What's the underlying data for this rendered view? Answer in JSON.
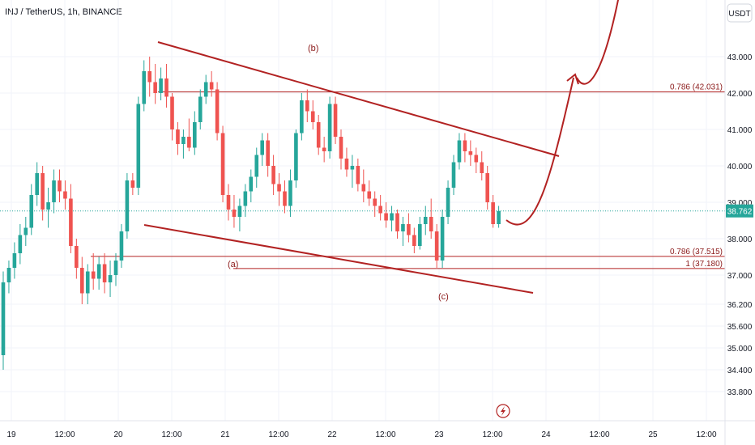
{
  "header": {
    "title": "INJ / TetherUS, 1h, BINANCE",
    "currency_badge": "USDT"
  },
  "price_badge": "38.762",
  "colors": {
    "up": "#26a69a",
    "down": "#ef5350",
    "line": "#b22222",
    "grid": "#f0f3fa",
    "badge": "#26a69a"
  },
  "chart_data": {
    "type": "candlestick",
    "title": "INJ / TetherUS, 1h, BINANCE",
    "y_ticks": [
      33.8,
      34.4,
      35.0,
      35.6,
      36.2,
      37.0,
      38.0,
      39.0,
      40.0,
      41.0,
      42.0,
      43.0
    ],
    "y_tick_labels": [
      "33.800",
      "34.400",
      "35.000",
      "35.600",
      "36.200",
      "37.000",
      "38.000",
      "39.000",
      "40.000",
      "41.000",
      "42.000",
      "43.000"
    ],
    "x_labels": [
      "19",
      "12:00",
      "20",
      "12:00",
      "21",
      "12:00",
      "22",
      "12:00",
      "23",
      "12:00",
      "24",
      "12:00",
      "25",
      "12:00"
    ],
    "last_price": 38.762,
    "fib_levels": [
      {
        "label": "0.786 (42.031)",
        "value": 42.031
      },
      {
        "label": "0.786 (37.515)",
        "value": 37.515
      },
      {
        "label": "1 (37.180)",
        "value": 37.18
      }
    ],
    "wave_labels": [
      "(a)",
      "(b)",
      "(c)"
    ],
    "candles": [
      [
        34.8,
        37.1,
        34.4,
        36.8
      ],
      [
        36.8,
        37.4,
        36.5,
        37.2
      ],
      [
        37.2,
        37.9,
        36.9,
        37.6
      ],
      [
        37.6,
        38.4,
        37.3,
        38.1
      ],
      [
        38.1,
        38.6,
        37.8,
        38.3
      ],
      [
        38.3,
        39.5,
        38.1,
        39.2
      ],
      [
        39.2,
        40.1,
        38.9,
        39.8
      ],
      [
        39.8,
        40.0,
        38.5,
        38.8
      ],
      [
        38.8,
        39.4,
        38.3,
        39.0
      ],
      [
        39.0,
        39.9,
        38.7,
        39.6
      ],
      [
        39.6,
        39.9,
        39.0,
        39.3
      ],
      [
        39.3,
        39.6,
        38.8,
        39.1
      ],
      [
        39.1,
        39.5,
        37.6,
        37.8
      ],
      [
        37.8,
        38.0,
        36.9,
        37.2
      ],
      [
        37.2,
        37.5,
        36.2,
        36.5
      ],
      [
        36.5,
        37.3,
        36.2,
        37.1
      ],
      [
        37.1,
        37.6,
        36.6,
        36.9
      ],
      [
        36.9,
        37.5,
        36.6,
        37.3
      ],
      [
        37.3,
        37.6,
        36.5,
        36.8
      ],
      [
        36.8,
        37.4,
        36.4,
        37.0
      ],
      [
        37.0,
        37.6,
        36.7,
        37.4
      ],
      [
        37.4,
        38.4,
        37.2,
        38.2
      ],
      [
        38.2,
        39.8,
        38.0,
        39.6
      ],
      [
        39.6,
        39.8,
        39.2,
        39.4
      ],
      [
        39.4,
        41.9,
        39.2,
        41.7
      ],
      [
        41.7,
        42.9,
        41.5,
        42.6
      ],
      [
        42.6,
        43.0,
        41.9,
        42.3
      ],
      [
        42.3,
        42.8,
        41.7,
        42.0
      ],
      [
        42.0,
        42.7,
        41.8,
        42.4
      ],
      [
        42.4,
        42.8,
        41.6,
        41.9
      ],
      [
        41.9,
        42.0,
        40.7,
        41.0
      ],
      [
        41.0,
        41.2,
        40.3,
        40.6
      ],
      [
        40.6,
        41.0,
        40.2,
        40.8
      ],
      [
        40.8,
        41.3,
        40.4,
        40.5
      ],
      [
        40.5,
        41.5,
        40.3,
        41.2
      ],
      [
        41.2,
        42.1,
        41.0,
        41.9
      ],
      [
        41.9,
        42.5,
        41.7,
        42.3
      ],
      [
        42.3,
        42.6,
        41.9,
        42.1
      ],
      [
        42.1,
        42.3,
        40.7,
        40.9
      ],
      [
        40.9,
        41.1,
        39.0,
        39.2
      ],
      [
        39.2,
        39.5,
        38.5,
        38.8
      ],
      [
        38.8,
        39.2,
        38.3,
        38.6
      ],
      [
        38.6,
        39.1,
        38.2,
        38.9
      ],
      [
        38.9,
        39.5,
        38.6,
        39.3
      ],
      [
        39.3,
        39.9,
        39.0,
        39.7
      ],
      [
        39.7,
        40.5,
        39.4,
        40.3
      ],
      [
        40.3,
        40.9,
        40.0,
        40.7
      ],
      [
        40.7,
        40.9,
        39.7,
        40.0
      ],
      [
        40.0,
        40.3,
        39.2,
        39.5
      ],
      [
        39.5,
        39.8,
        38.9,
        39.3
      ],
      [
        39.3,
        39.6,
        38.7,
        38.9
      ],
      [
        38.9,
        39.9,
        38.6,
        39.6
      ],
      [
        39.6,
        41.0,
        39.4,
        40.9
      ],
      [
        40.9,
        42.0,
        40.7,
        41.8
      ],
      [
        41.8,
        42.1,
        41.2,
        41.5
      ],
      [
        41.5,
        41.8,
        41.0,
        41.2
      ],
      [
        41.2,
        41.4,
        40.3,
        40.5
      ],
      [
        40.5,
        40.8,
        40.1,
        40.4
      ],
      [
        40.4,
        41.9,
        40.2,
        41.7
      ],
      [
        41.7,
        41.9,
        40.6,
        40.8
      ],
      [
        40.8,
        41.0,
        39.9,
        40.2
      ],
      [
        40.2,
        40.5,
        39.7,
        39.9
      ],
      [
        39.9,
        40.3,
        39.4,
        40.0
      ],
      [
        40.0,
        40.2,
        39.3,
        39.5
      ],
      [
        39.5,
        39.9,
        39.0,
        39.3
      ],
      [
        39.3,
        39.6,
        38.9,
        39.1
      ],
      [
        39.1,
        39.3,
        38.6,
        38.9
      ],
      [
        38.9,
        39.2,
        38.5,
        38.7
      ],
      [
        38.7,
        39.0,
        38.3,
        38.5
      ],
      [
        38.5,
        38.9,
        38.2,
        38.7
      ],
      [
        38.7,
        38.8,
        38.0,
        38.2
      ],
      [
        38.2,
        38.6,
        37.8,
        38.4
      ],
      [
        38.4,
        38.7,
        37.9,
        38.1
      ],
      [
        38.1,
        38.3,
        37.6,
        37.8
      ],
      [
        37.8,
        38.6,
        37.7,
        38.4
      ],
      [
        38.4,
        38.9,
        38.1,
        38.6
      ],
      [
        38.6,
        39.1,
        38.0,
        38.2
      ],
      [
        38.2,
        38.4,
        37.2,
        37.4
      ],
      [
        37.4,
        38.8,
        37.2,
        38.6
      ],
      [
        38.6,
        39.6,
        38.4,
        39.4
      ],
      [
        39.4,
        40.3,
        39.2,
        40.1
      ],
      [
        40.1,
        40.9,
        39.9,
        40.7
      ],
      [
        40.7,
        40.9,
        40.1,
        40.4
      ],
      [
        40.4,
        40.7,
        40.0,
        40.3
      ],
      [
        40.3,
        40.5,
        39.8,
        40.1
      ],
      [
        40.1,
        40.4,
        39.6,
        39.8
      ],
      [
        39.8,
        40.0,
        38.8,
        39.0
      ],
      [
        39.0,
        39.2,
        38.3,
        38.4
      ],
      [
        38.4,
        38.9,
        38.3,
        38.762
      ]
    ]
  }
}
